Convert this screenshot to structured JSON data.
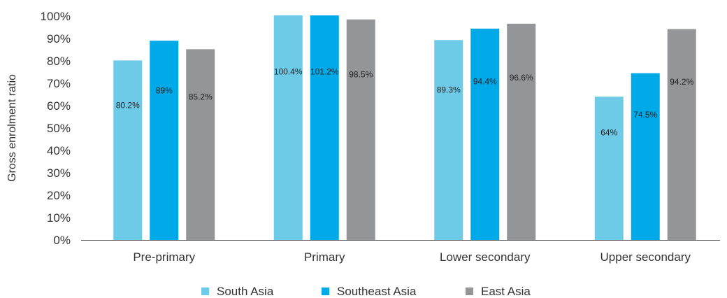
{
  "chart_data": {
    "type": "bar",
    "title": "",
    "xlabel": "",
    "ylabel": "Gross enrolment ratio",
    "ylim": [
      0,
      100
    ],
    "yticks": [
      0,
      10,
      20,
      30,
      40,
      50,
      60,
      70,
      80,
      90,
      100
    ],
    "ytick_labels": [
      "0%",
      "10%",
      "20%",
      "30%",
      "40%",
      "50%",
      "60%",
      "70%",
      "80%",
      "90%",
      "100%"
    ],
    "grid": false,
    "legend": "bottom",
    "categories": [
      "Pre-primary",
      "Primary",
      "Lower secondary",
      "Upper secondary"
    ],
    "series": [
      {
        "name": "South Asia",
        "color": "#6dcbe8",
        "values": [
          80.2,
          100.4,
          89.3,
          64
        ],
        "labels": [
          "80.2%",
          "100.4%",
          "89.3%",
          "64%"
        ]
      },
      {
        "name": "Southeast Asia",
        "color": "#00a9e8",
        "values": [
          89,
          101.2,
          94.4,
          74.5
        ],
        "labels": [
          "89%",
          "101.2%",
          "94.4%",
          "74.5%"
        ]
      },
      {
        "name": "East Asia",
        "color": "#939598",
        "values": [
          85.2,
          98.5,
          96.6,
          94.2
        ],
        "labels": [
          "85.2%",
          "98.5%",
          "96.6%",
          "94.2%"
        ]
      }
    ]
  }
}
